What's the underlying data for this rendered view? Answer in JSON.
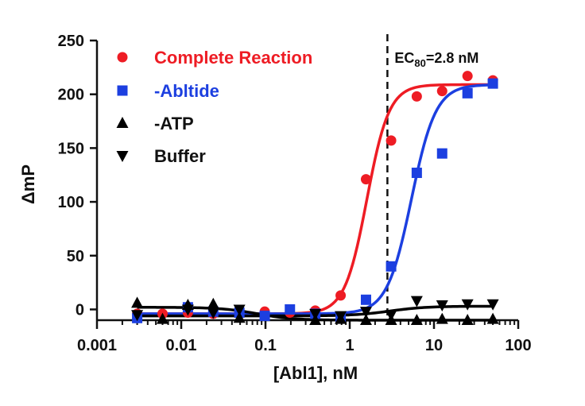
{
  "chart_data": {
    "type": "scatter",
    "xscale": "log",
    "xlim": [
      0.001,
      100
    ],
    "ylim": [
      -10,
      250
    ],
    "xlabel": "[Abl1], nM",
    "ylabel_symbol": "Δ",
    "ylabel_text": "mP",
    "x_tick_labels": [
      "0.001",
      "0.01",
      "0.1",
      "1",
      "10",
      "100"
    ],
    "x_tick_values": [
      0.001,
      0.01,
      0.1,
      1,
      10,
      100
    ],
    "y_tick_labels": [
      "0",
      "50",
      "100",
      "150",
      "200",
      "250"
    ],
    "y_tick_values": [
      0,
      50,
      100,
      150,
      200,
      250
    ],
    "annotation": {
      "x": 2.8,
      "text_main": "EC",
      "text_sub": "80",
      "text_tail": "=2.8 nM",
      "line_style": "dashed"
    },
    "series": [
      {
        "name": "Complete Reaction",
        "color": "#ee1c24",
        "marker": "circle",
        "x": [
          0.003,
          0.006,
          0.012,
          0.024,
          0.049,
          0.098,
          0.195,
          0.39,
          0.78,
          1.56,
          3.1,
          6.25,
          12.5,
          25,
          50
        ],
        "y": [
          -4,
          -4,
          -3,
          -4,
          -3,
          -2,
          -3,
          -1,
          13,
          121,
          157,
          198,
          203,
          217,
          213
        ],
        "fit": {
          "bottom": -4,
          "top": 209,
          "ec50": 1.6,
          "hill": 3.3
        }
      },
      {
        "name": "-Abltide",
        "color": "#1c3fe0",
        "marker": "square",
        "x": [
          0.003,
          0.012,
          0.024,
          0.049,
          0.098,
          0.195,
          0.39,
          0.78,
          1.56,
          3.1,
          6.25,
          12.5,
          25,
          50
        ],
        "y": [
          -8,
          2,
          -2,
          -3,
          -6,
          0,
          -4,
          -8,
          9,
          40,
          127,
          145,
          201,
          210
        ],
        "fit": {
          "bottom": -4,
          "top": 209,
          "ec50": 5.4,
          "hill": 3.0
        }
      },
      {
        "name": "-ATP",
        "color": "#000000",
        "marker": "triangle-up",
        "x": [
          0.003,
          0.006,
          0.012,
          0.024,
          0.049,
          0.39,
          0.78,
          1.56,
          3.1,
          6.25,
          12.5,
          25,
          50
        ],
        "y": [
          6,
          -9,
          4,
          5,
          -8,
          -10,
          -9,
          -10,
          -10,
          -10,
          -9,
          -10,
          -9
        ],
        "fit": {
          "bottom": 2,
          "top": -10,
          "ec50": 0.08,
          "hill": 2.0
        }
      },
      {
        "name": "Buffer",
        "color": "#000000",
        "marker": "triangle-down",
        "x": [
          0.003,
          0.012,
          0.024,
          0.049,
          0.39,
          0.78,
          1.56,
          3.1,
          6.25,
          12.5,
          25,
          50
        ],
        "y": [
          -5,
          0,
          -3,
          0,
          -4,
          -6,
          -2,
          -5,
          8,
          4,
          5,
          5
        ],
        "fit": {
          "bottom": -6,
          "top": 3,
          "ec50": 3.0,
          "hill": 2.0
        }
      }
    ],
    "legend_position": "top-left"
  }
}
